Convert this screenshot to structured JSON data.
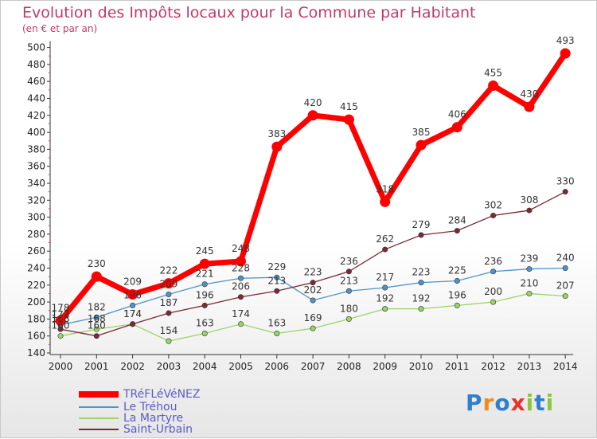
{
  "chart_data": {
    "type": "line",
    "title": "Evolution des Impôts locaux pour la Commune par Habitant",
    "subtitle": "(en € et par an)",
    "xlabel": "",
    "ylabel": "",
    "ylim": [
      140,
      500
    ],
    "yticks": [
      140,
      160,
      180,
      200,
      220,
      240,
      260,
      280,
      300,
      320,
      340,
      360,
      380,
      400,
      420,
      440,
      460,
      480,
      500
    ],
    "categories": [
      "2000",
      "2001",
      "2002",
      "2003",
      "2004",
      "2005",
      "2006",
      "2007",
      "2008",
      "2009",
      "2010",
      "2011",
      "2012",
      "2013",
      "2014"
    ],
    "series": [
      {
        "name": "Le Tréhou",
        "color": "#4f93c8",
        "values": [
          173,
          182,
          196,
          209,
          221,
          228,
          229,
          202,
          213,
          217,
          223,
          225,
          236,
          239,
          240
        ]
      },
      {
        "name": "La Martyre",
        "color": "#9ad468",
        "values": [
          160,
          168,
          174,
          154,
          163,
          174,
          163,
          169,
          180,
          192,
          192,
          196,
          200,
          210,
          207
        ]
      },
      {
        "name": "Saint-Urbain",
        "color": "#7a2a34",
        "values": [
          168,
          160,
          174,
          187,
          196,
          206,
          213,
          223,
          236,
          262,
          279,
          284,
          302,
          308,
          330
        ]
      },
      {
        "name": "TRéFLéVéNEZ",
        "color": "#ff0000",
        "values": [
          178,
          230,
          209,
          222,
          245,
          248,
          383,
          420,
          415,
          318,
          385,
          406,
          455,
          430,
          493
        ]
      }
    ],
    "legend_position": "bottom-left",
    "grid": false
  },
  "logo": {
    "text": "Proxiti",
    "colors": [
      "#2f7fd0",
      "#f08a1c",
      "#2f7fd0",
      "#e8322a",
      "#8cc63f",
      "#2f7fd0",
      "#8cc63f"
    ]
  }
}
